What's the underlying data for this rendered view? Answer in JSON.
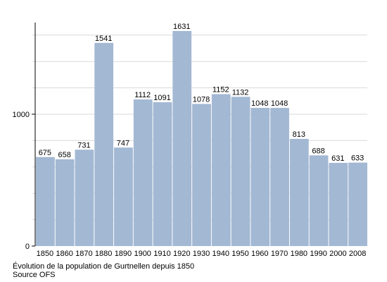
{
  "chart_data": {
    "type": "bar",
    "categories": [
      "1850",
      "1860",
      "1870",
      "1880",
      "1890",
      "1900",
      "1910",
      "1920",
      "1930",
      "1940",
      "1950",
      "1960",
      "1970",
      "1980",
      "1990",
      "2000",
      "2008"
    ],
    "values": [
      675,
      658,
      731,
      1541,
      747,
      1112,
      1091,
      1631,
      1078,
      1152,
      1132,
      1048,
      1048,
      813,
      688,
      631,
      633
    ],
    "title": "",
    "xlabel": "",
    "ylabel": "",
    "ylim": [
      0,
      1700
    ],
    "yticks": [
      0,
      1000
    ],
    "grid": true,
    "bar_color": "#a3b8d3",
    "grid_color": "#d9d9d9"
  },
  "caption": {
    "title": "Évolution de la population de Gurtnellen depuis 1850",
    "source": "Source OFS"
  }
}
